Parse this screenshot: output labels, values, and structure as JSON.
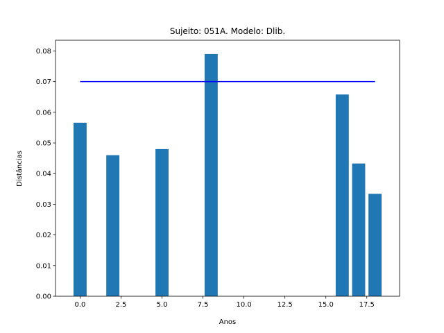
{
  "chart_data": {
    "type": "bar",
    "title": "Sujeito: 051A. Modelo: Dlib.",
    "xlabel": "Anos",
    "ylabel": "Distâncias",
    "x": [
      0,
      2,
      5,
      8,
      16,
      17,
      18
    ],
    "values": [
      0.0566,
      0.046,
      0.048,
      0.079,
      0.0658,
      0.0433,
      0.0334
    ],
    "bar_width": 0.8,
    "bar_color": "#1f77b4",
    "threshold": {
      "value": 0.07,
      "x_start": 0,
      "x_end": 18,
      "color": "#0000ff"
    },
    "xlim": [
      -1.5,
      19.5
    ],
    "ylim": [
      0,
      0.0835
    ],
    "xticks": [
      0.0,
      2.5,
      5.0,
      7.5,
      10.0,
      12.5,
      15.0,
      17.5
    ],
    "xtick_labels": [
      "0.0",
      "2.5",
      "5.0",
      "7.5",
      "10.0",
      "12.5",
      "15.0",
      "17.5"
    ],
    "yticks": [
      0.0,
      0.01,
      0.02,
      0.03,
      0.04,
      0.05,
      0.06,
      0.07,
      0.08
    ],
    "ytick_labels": [
      "0.00",
      "0.01",
      "0.02",
      "0.03",
      "0.04",
      "0.05",
      "0.06",
      "0.07",
      "0.08"
    ],
    "grid": false,
    "legend": false
  }
}
